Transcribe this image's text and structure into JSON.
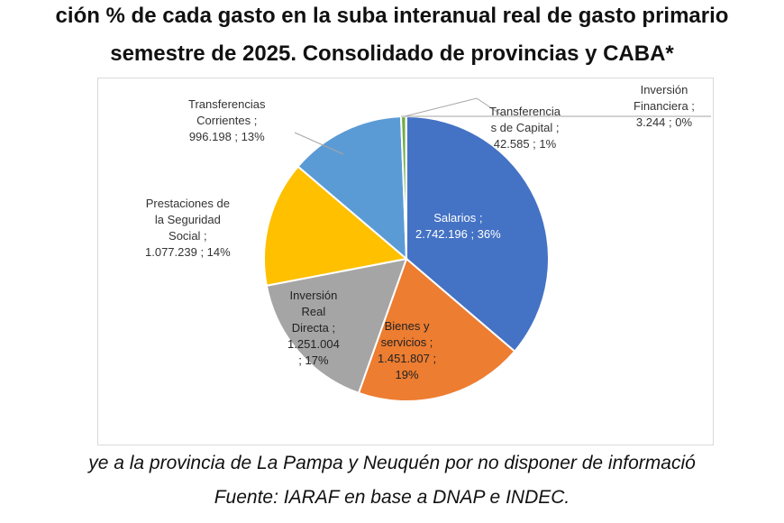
{
  "title_line1": "ción % de cada gasto en la suba interanual real de gasto primario",
  "title_line2": "semestre de 2025. Consolidado de provincias y CABA*",
  "footnote": "ye a la provincia de La Pampa y Neuquén por no disponer de informació",
  "source": "Fuente: IARAF en base a DNAP e INDEC.",
  "chart_data": {
    "type": "pie",
    "start": "top",
    "direction": "clockwise",
    "slices": [
      {
        "name": "Salarios",
        "value": 2742196,
        "percent": 36,
        "color": "#4472C4",
        "label_lines": [
          "Salarios ;",
          "2.742.196 ; 36%"
        ]
      },
      {
        "name": "Bienes y servicios",
        "value": 1451807,
        "percent": 19,
        "color": "#ED7D31",
        "label_lines": [
          "Bienes y",
          "servicios ;",
          "1.451.807 ;",
          "19%"
        ]
      },
      {
        "name": "Inversión Real Directa",
        "value": 1251004,
        "percent": 17,
        "color": "#A5A5A5",
        "label_lines": [
          "Inversión",
          "Real",
          "Directa ;",
          "1.251.004",
          "; 17%"
        ]
      },
      {
        "name": "Prestaciones de la Seguridad Social",
        "value": 1077239,
        "percent": 14,
        "color": "#FFC000",
        "label_lines": [
          "Prestaciones de",
          "la Seguridad",
          "Social ;",
          "1.077.239 ; 14%"
        ]
      },
      {
        "name": "Transferencias Corrientes",
        "value": 996198,
        "percent": 13,
        "color": "#5B9BD5",
        "label_lines": [
          "Transferencias",
          "Corrientes ;",
          "996.198 ; 13%"
        ]
      },
      {
        "name": "Transferencias de Capital",
        "value": 42585,
        "percent": 1,
        "color": "#70AD47",
        "label_lines": [
          "Transferencia",
          "s de Capital ;",
          "42.585 ; 1%"
        ]
      },
      {
        "name": "Inversión Financiera",
        "value": 3244,
        "percent": 0,
        "color": "#264478",
        "label_lines": [
          "Inversión",
          "Financiera ;",
          "3.244 ; 0%"
        ]
      }
    ]
  }
}
